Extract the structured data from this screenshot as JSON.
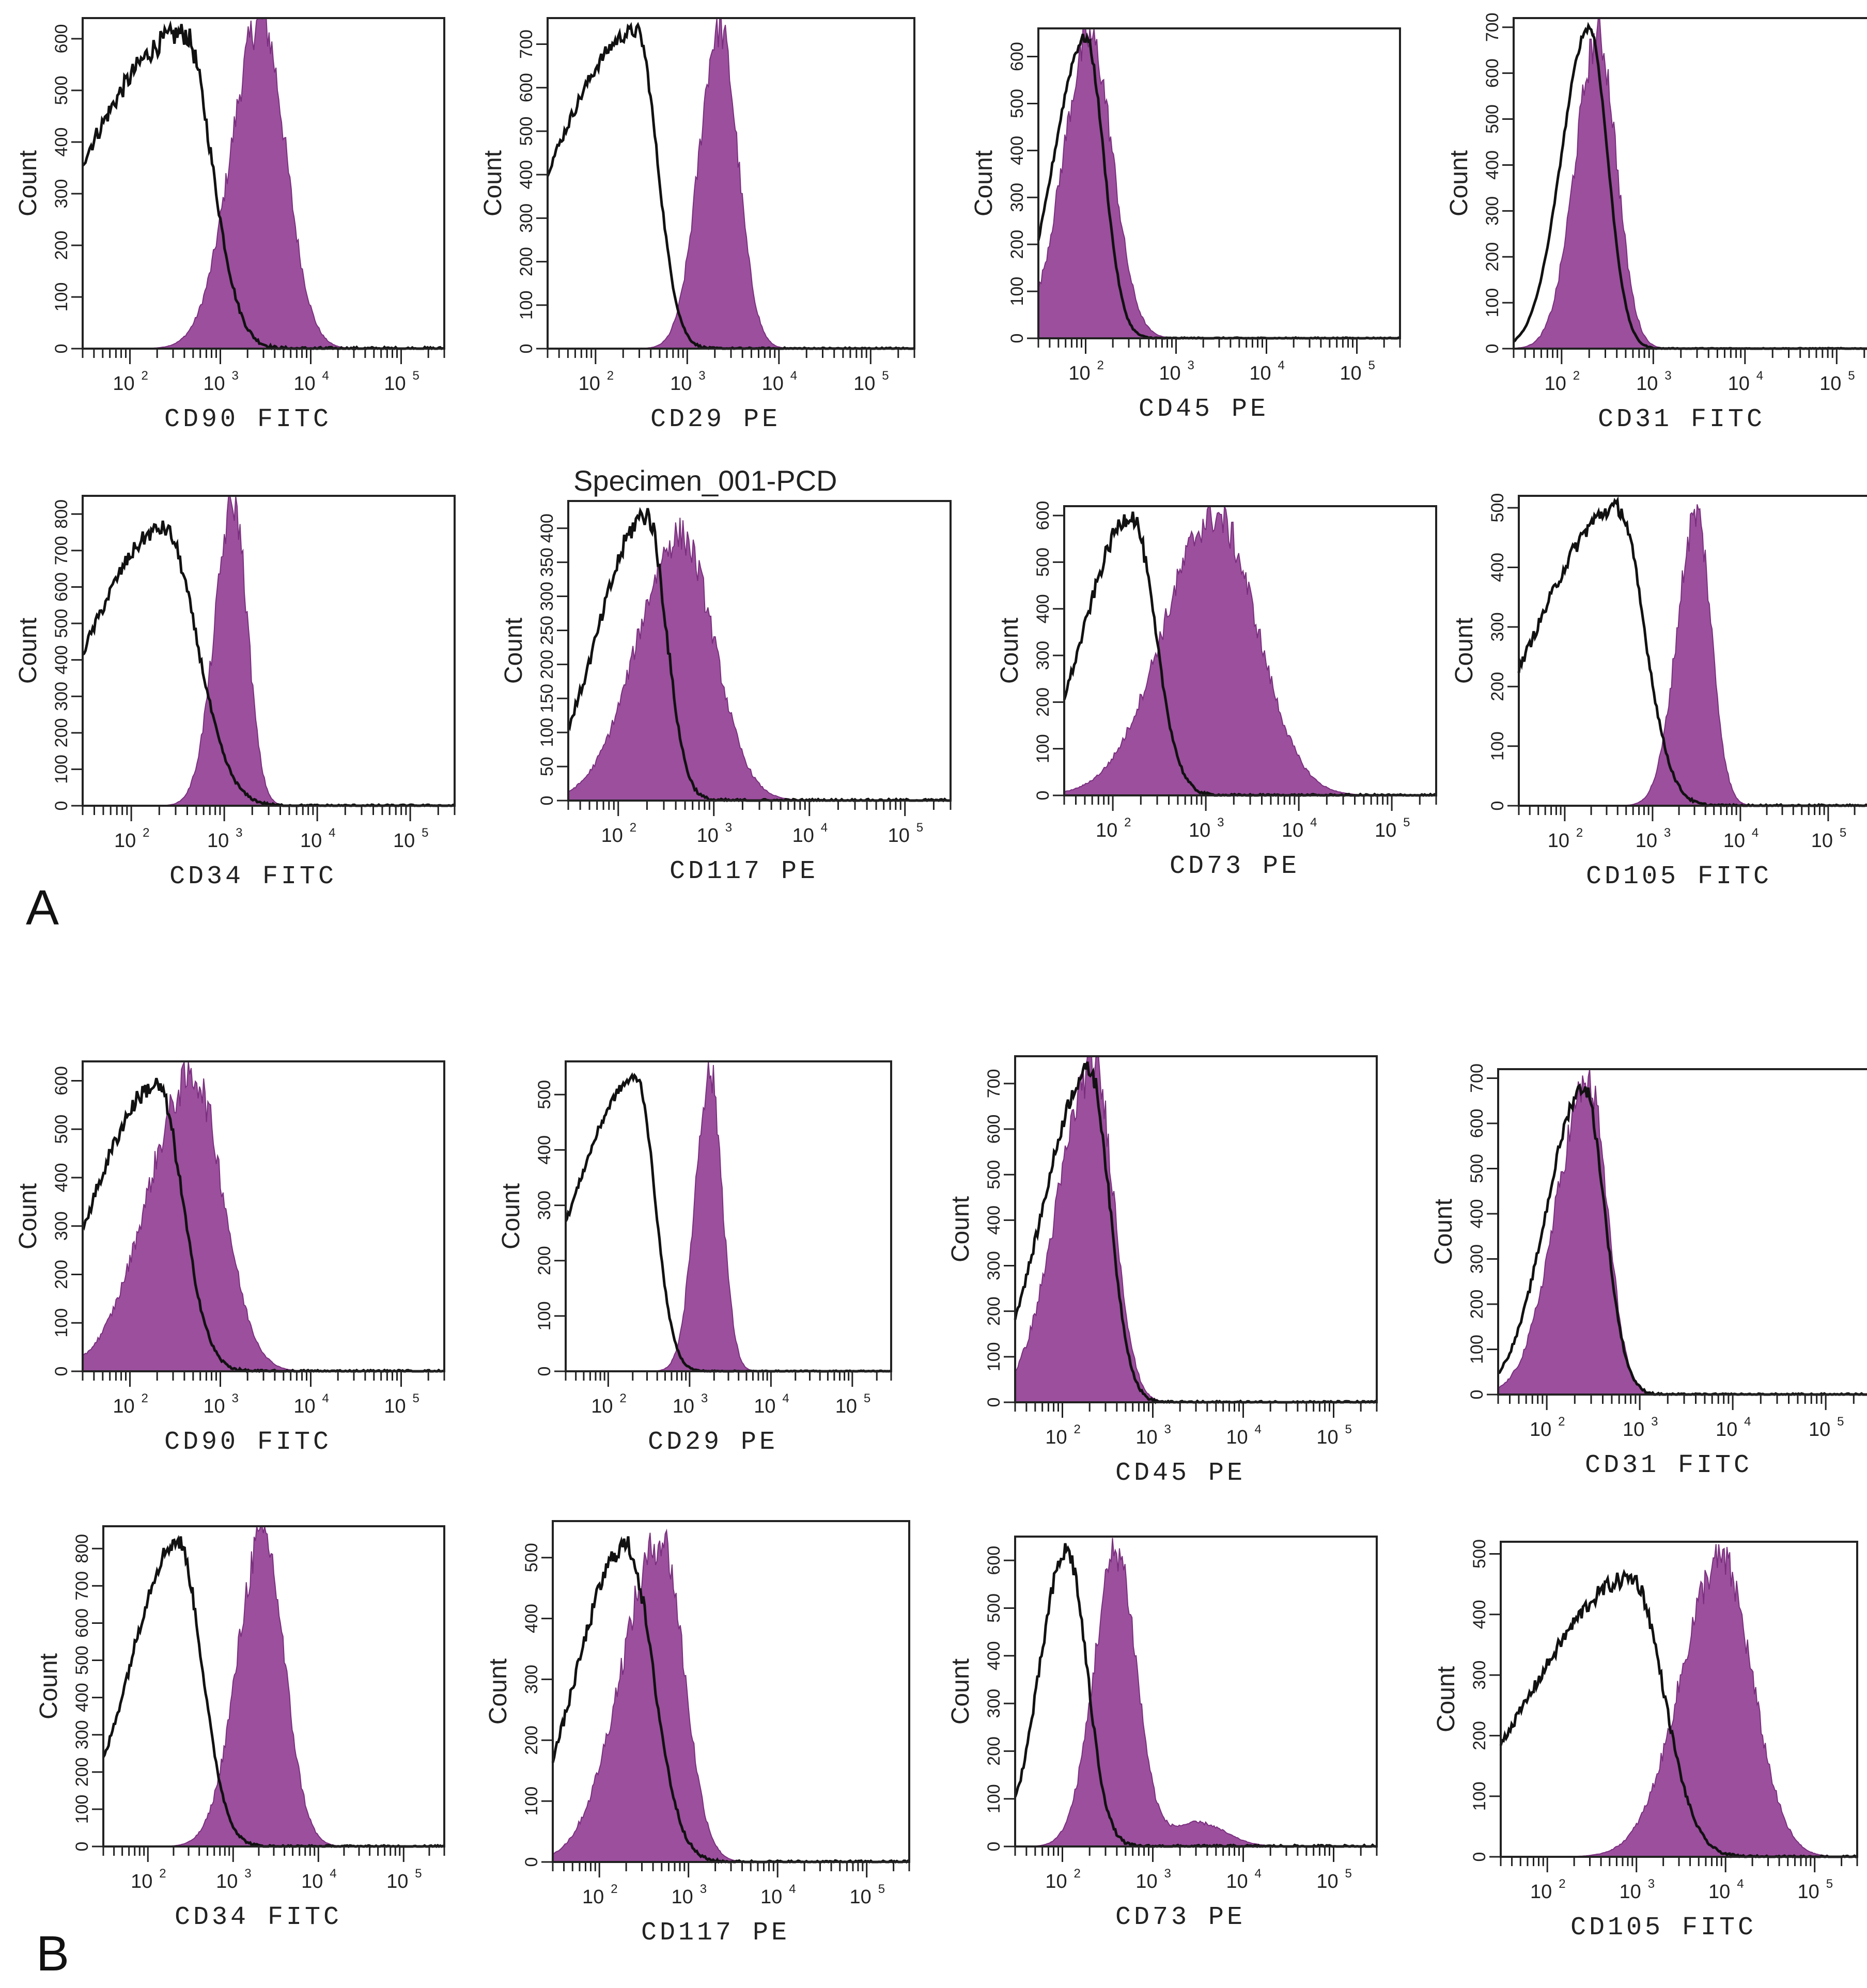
{
  "figure": {
    "panel_labels": [
      "A",
      "B"
    ],
    "colors": {
      "stained_fill": "#9b4f9d",
      "stained_edge": "#7a2f7e",
      "isotype_line": "#111111",
      "frame": "#222222"
    }
  },
  "chart_data": [
    {
      "panel": "A",
      "type": "histogram",
      "marker": "CD90",
      "fluor": "FITC",
      "xlabel": "CD90 FITC",
      "ylabel": "Count",
      "xscale": "log",
      "xlim": [
        30,
        300000
      ],
      "ylim": [
        0,
        640
      ],
      "yticks": [
        0,
        100,
        200,
        300,
        400,
        500,
        600
      ],
      "xticks_exp": [
        2,
        3,
        4,
        5
      ],
      "isotype": {
        "peak_log": 2.6,
        "peak": 610,
        "width_left": 1.1,
        "width_right": 0.3,
        "noise": 40
      },
      "stained": {
        "peak_log": 3.45,
        "peak": 640,
        "width_left": 0.33,
        "width_right": 0.27
      }
    },
    {
      "panel": "A",
      "type": "histogram",
      "marker": "CD29",
      "fluor": "PE",
      "xlabel": "CD29 PE",
      "ylabel": "Count",
      "xscale": "log",
      "xlim": [
        30,
        300000
      ],
      "ylim": [
        0,
        760
      ],
      "yticks": [
        0,
        100,
        200,
        300,
        400,
        500,
        600,
        700
      ],
      "xticks_exp": [
        2,
        3,
        4,
        5
      ],
      "isotype": {
        "peak_log": 2.45,
        "peak": 730,
        "width_left": 0.9,
        "width_right": 0.22,
        "noise": 30
      },
      "stained": {
        "peak_log": 3.35,
        "peak": 740,
        "width_left": 0.22,
        "width_right": 0.2
      }
    },
    {
      "panel": "A",
      "type": "histogram",
      "marker": "CD45",
      "fluor": "PE",
      "xlabel": "CD45 PE",
      "ylabel": "Count",
      "xscale": "log",
      "xlim": [
        30,
        300000
      ],
      "ylim": [
        0,
        660
      ],
      "yticks": [
        0,
        100,
        200,
        300,
        400,
        500,
        600
      ],
      "xticks_exp": [
        2,
        3,
        4,
        5
      ],
      "isotype": {
        "peak_log": 2.0,
        "peak": 640,
        "width_left": 0.35,
        "width_right": 0.2,
        "noise": 20
      },
      "stained": {
        "peak_log": 2.05,
        "peak": 640,
        "width_left": 0.3,
        "width_right": 0.25
      }
    },
    {
      "panel": "A",
      "type": "histogram",
      "marker": "CD31",
      "fluor": "FITC",
      "xlabel": "CD31 FITC",
      "ylabel": "Count",
      "xscale": "log",
      "xlim": [
        30,
        300000
      ],
      "ylim": [
        0,
        720
      ],
      "yticks": [
        0,
        100,
        200,
        300,
        400,
        500,
        600,
        700
      ],
      "xticks_exp": [
        2,
        3,
        4,
        5
      ],
      "isotype": {
        "peak_log": 2.3,
        "peak": 700,
        "width_left": 0.3,
        "width_right": 0.2,
        "noise": 15
      },
      "stained": {
        "peak_log": 2.4,
        "peak": 680,
        "width_left": 0.25,
        "width_right": 0.2
      }
    },
    {
      "panel": "A",
      "type": "histogram",
      "marker": "CD34",
      "fluor": "FITC",
      "xlabel": "CD34 FITC",
      "ylabel": "Count",
      "xscale": "log",
      "xlim": [
        30,
        300000
      ],
      "ylim": [
        0,
        850
      ],
      "yticks": [
        0,
        100,
        200,
        300,
        400,
        500,
        600,
        700,
        800
      ],
      "xticks_exp": [
        2,
        3,
        4,
        5
      ],
      "isotype": {
        "peak_log": 2.35,
        "peak": 760,
        "width_left": 0.8,
        "width_right": 0.35,
        "noise": 40
      },
      "stained": {
        "peak_log": 3.1,
        "peak": 830,
        "width_left": 0.2,
        "width_right": 0.15
      }
    },
    {
      "panel": "A",
      "type": "histogram",
      "marker": "CD117",
      "fluor": "PE",
      "xlabel": "CD117 PE",
      "ylabel": "Count",
      "title": "Specimen_001-PCD",
      "xscale": "log",
      "xlim": [
        30,
        300000
      ],
      "ylim": [
        0,
        440
      ],
      "yticks": [
        0,
        50,
        100,
        150,
        200,
        250,
        300,
        350,
        400
      ],
      "xticks_exp": [
        2,
        3,
        4,
        5
      ],
      "isotype": {
        "peak_log": 2.3,
        "peak": 420,
        "width_left": 0.5,
        "width_right": 0.2,
        "noise": 30
      },
      "stained": {
        "peak_log": 2.65,
        "peak": 390,
        "width_left": 0.45,
        "width_right": 0.35
      }
    },
    {
      "panel": "A",
      "type": "histogram",
      "marker": "CD73",
      "fluor": "PE",
      "xlabel": "CD73 PE",
      "ylabel": "Count",
      "xscale": "log",
      "xlim": [
        30,
        300000
      ],
      "ylim": [
        0,
        620
      ],
      "yticks": [
        0,
        100,
        200,
        300,
        400,
        500,
        600
      ],
      "xticks_exp": [
        2,
        3,
        4,
        5
      ],
      "isotype": {
        "peak_log": 2.2,
        "peak": 600,
        "width_left": 0.5,
        "width_right": 0.25,
        "noise": 35
      },
      "stained": {
        "peak_log": 3.1,
        "peak": 600,
        "width_left": 0.55,
        "width_right": 0.45
      }
    },
    {
      "panel": "A",
      "type": "histogram",
      "marker": "CD105",
      "fluor": "FITC",
      "xlabel": "CD105 FITC",
      "ylabel": "Count",
      "xscale": "log",
      "xlim": [
        30,
        300000
      ],
      "ylim": [
        0,
        520
      ],
      "yticks": [
        0,
        100,
        200,
        300,
        400,
        500
      ],
      "xticks_exp": [
        2,
        3,
        4,
        5
      ],
      "isotype": {
        "peak_log": 2.6,
        "peak": 500,
        "width_left": 0.9,
        "width_right": 0.3,
        "noise": 25
      },
      "stained": {
        "peak_log": 3.5,
        "peak": 490,
        "width_left": 0.22,
        "width_right": 0.17
      }
    },
    {
      "panel": "B",
      "type": "histogram",
      "marker": "CD90",
      "fluor": "FITC",
      "xlabel": "CD90 FITC",
      "ylabel": "Count",
      "xscale": "log",
      "xlim": [
        30,
        300000
      ],
      "ylim": [
        0,
        640
      ],
      "yticks": [
        0,
        100,
        200,
        300,
        400,
        500,
        600
      ],
      "xticks_exp": [
        2,
        3,
        4,
        5
      ],
      "isotype": {
        "peak_log": 2.3,
        "peak": 590,
        "width_left": 0.7,
        "width_right": 0.28,
        "noise": 35
      },
      "stained": {
        "peak_log": 2.7,
        "peak": 610,
        "width_left": 0.5,
        "width_right": 0.33
      }
    },
    {
      "panel": "B",
      "type": "histogram",
      "marker": "CD29",
      "fluor": "PE",
      "xlabel": "CD29 PE",
      "ylabel": "Count",
      "xscale": "log",
      "xlim": [
        30,
        300000
      ],
      "ylim": [
        0,
        560
      ],
      "yticks": [
        0,
        100,
        200,
        300,
        400,
        500
      ],
      "xticks_exp": [
        2,
        3,
        4,
        5
      ],
      "isotype": {
        "peak_log": 2.35,
        "peak": 530,
        "width_left": 0.75,
        "width_right": 0.22,
        "noise": 15
      },
      "stained": {
        "peak_log": 3.25,
        "peak": 540,
        "width_left": 0.18,
        "width_right": 0.15
      }
    },
    {
      "panel": "B",
      "type": "histogram",
      "marker": "CD45",
      "fluor": "PE",
      "xlabel": "CD45 PE",
      "ylabel": "Count",
      "xscale": "log",
      "xlim": [
        30,
        300000
      ],
      "ylim": [
        0,
        760
      ],
      "yticks": [
        0,
        100,
        200,
        300,
        400,
        500,
        600,
        700
      ],
      "xticks_exp": [
        2,
        3,
        4,
        5
      ],
      "isotype": {
        "peak_log": 2.3,
        "peak": 730,
        "width_left": 0.5,
        "width_right": 0.22,
        "noise": 35
      },
      "stained": {
        "peak_log": 2.35,
        "peak": 740,
        "width_left": 0.4,
        "width_right": 0.22
      }
    },
    {
      "panel": "B",
      "type": "histogram",
      "marker": "CD31",
      "fluor": "FITC",
      "xlabel": "CD31 FITC",
      "ylabel": "Count",
      "xscale": "log",
      "xlim": [
        30,
        300000
      ],
      "ylim": [
        0,
        720
      ],
      "yticks": [
        0,
        100,
        200,
        300,
        400,
        500,
        600,
        700
      ],
      "xticks_exp": [
        2,
        3,
        4,
        5
      ],
      "isotype": {
        "peak_log": 2.4,
        "peak": 680,
        "width_left": 0.4,
        "width_right": 0.22,
        "noise": 30
      },
      "stained": {
        "peak_log": 2.45,
        "peak": 690,
        "width_left": 0.35,
        "width_right": 0.2
      }
    },
    {
      "panel": "B",
      "type": "histogram",
      "marker": "CD34",
      "fluor": "FITC",
      "xlabel": "CD34 FITC",
      "ylabel": "Count",
      "xscale": "log",
      "xlim": [
        30,
        300000
      ],
      "ylim": [
        0,
        860
      ],
      "yticks": [
        0,
        100,
        200,
        300,
        400,
        500,
        600,
        700,
        800
      ],
      "xticks_exp": [
        2,
        3,
        4,
        5
      ],
      "isotype": {
        "peak_log": 2.35,
        "peak": 820,
        "width_left": 0.55,
        "width_right": 0.28,
        "noise": 40
      },
      "stained": {
        "peak_log": 3.35,
        "peak": 840,
        "width_left": 0.3,
        "width_right": 0.25
      }
    },
    {
      "panel": "B",
      "type": "histogram",
      "marker": "CD117",
      "fluor": "PE",
      "xlabel": "CD117 PE",
      "ylabel": "Count",
      "xscale": "log",
      "xlim": [
        30,
        300000
      ],
      "ylim": [
        0,
        560
      ],
      "yticks": [
        0,
        100,
        200,
        300,
        400,
        500
      ],
      "xticks_exp": [
        2,
        3,
        4,
        5
      ],
      "isotype": {
        "peak_log": 2.3,
        "peak": 520,
        "width_left": 0.55,
        "width_right": 0.3,
        "noise": 30
      },
      "stained": {
        "peak_log": 2.7,
        "peak": 530,
        "width_left": 0.45,
        "width_right": 0.25
      }
    },
    {
      "panel": "B",
      "type": "histogram",
      "marker": "CD73",
      "fluor": "PE",
      "xlabel": "CD73 PE",
      "ylabel": "Count",
      "xscale": "log",
      "xlim": [
        30,
        300000
      ],
      "ylim": [
        0,
        650
      ],
      "yticks": [
        0,
        100,
        200,
        300,
        400,
        500,
        600
      ],
      "xticks_exp": [
        2,
        3,
        4,
        5
      ],
      "isotype": {
        "peak_log": 2.05,
        "peak": 620,
        "width_left": 0.3,
        "width_right": 0.22,
        "noise": 40
      },
      "stained": {
        "peak_log": 2.6,
        "peak": 620,
        "width_left": 0.25,
        "width_right": 0.22,
        "second_peak_log": 3.5,
        "second_peak": 50
      }
    },
    {
      "panel": "B",
      "type": "histogram",
      "marker": "CD105",
      "fluor": "FITC",
      "xlabel": "CD105 FITC",
      "ylabel": "Count",
      "xscale": "log",
      "xlim": [
        30,
        300000
      ],
      "ylim": [
        0,
        520
      ],
      "yticks": [
        0,
        100,
        200,
        300,
        400,
        500
      ],
      "xticks_exp": [
        2,
        3,
        4,
        5
      ],
      "isotype": {
        "peak_log": 2.95,
        "peak": 460,
        "width_left": 1.1,
        "width_right": 0.35,
        "noise": 25
      },
      "stained": {
        "peak_log": 3.95,
        "peak": 490,
        "width_left": 0.45,
        "width_right": 0.35
      }
    }
  ]
}
